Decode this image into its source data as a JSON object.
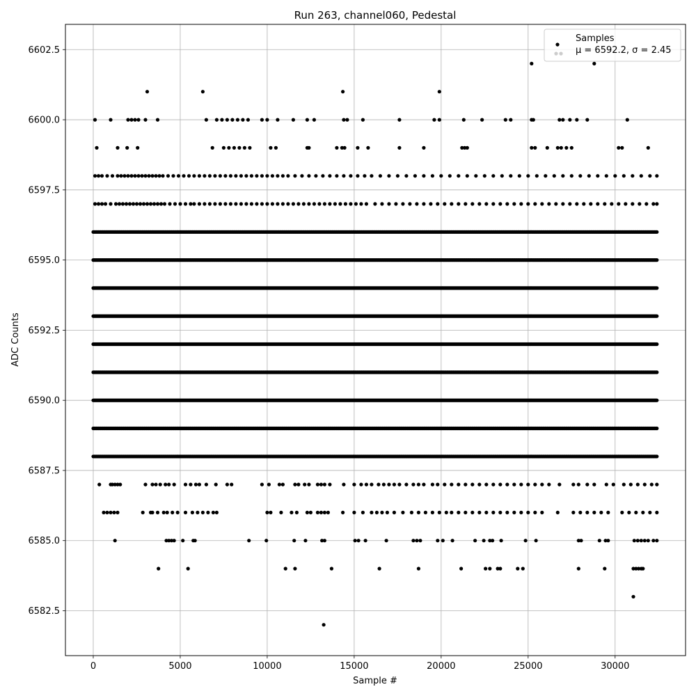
{
  "chart_data": {
    "type": "scatter",
    "title": "Run 263, channel060, Pedestal",
    "xlabel": "Sample #",
    "ylabel": "ADC Counts",
    "xlim": [
      -1600,
      34050
    ],
    "ylim": [
      6580.9,
      6603.4
    ],
    "xticks": [
      0,
      5000,
      10000,
      15000,
      20000,
      25000,
      30000
    ],
    "xtick_labels": [
      "0",
      "5000",
      "10000",
      "15000",
      "20000",
      "25000",
      "30000"
    ],
    "yticks": [
      6582.5,
      6585.0,
      6587.5,
      6590.0,
      6592.5,
      6595.0,
      6597.5,
      6600.0,
      6602.5
    ],
    "ytick_labels": [
      "6582.5",
      "6585.0",
      "6587.5",
      "6590.0",
      "6592.5",
      "6595.0",
      "6597.5",
      "6600.0",
      "6602.5"
    ],
    "grid": true,
    "legend_position": "top-right",
    "marker_color": "#000000",
    "series": [
      {
        "name": "Samples",
        "label_line2": "μ = 6592.2, σ = 2.45",
        "mean": 6592.2,
        "sigma": 2.45,
        "dense_rows": [
          {
            "y": 6588,
            "x_range": [
              0,
              32400
            ],
            "density": "high"
          },
          {
            "y": 6589,
            "x_range": [
              0,
              32400
            ],
            "density": "high"
          },
          {
            "y": 6590,
            "x_range": [
              0,
              32400
            ],
            "density": "full"
          },
          {
            "y": 6591,
            "x_range": [
              0,
              32400
            ],
            "density": "high"
          },
          {
            "y": 6592,
            "x_range": [
              0,
              32400
            ],
            "density": "full"
          },
          {
            "y": 6593,
            "x_range": [
              0,
              32400
            ],
            "density": "full"
          },
          {
            "y": 6594,
            "x_range": [
              0,
              32400
            ],
            "density": "full"
          },
          {
            "y": 6595,
            "x_range": [
              0,
              32400
            ],
            "density": "high"
          },
          {
            "y": 6596,
            "x_range": [
              0,
              32400
            ],
            "density": "high"
          }
        ],
        "sparse_points": [
          {
            "y": 6597,
            "x": [
              100,
              300,
              500,
              700,
              1000,
              1300,
              1500,
              1700,
              1900,
              2100,
              2300,
              2500,
              2700,
              2900,
              3100,
              3300,
              3500,
              3700,
              3900,
              4100,
              4400,
              4700,
              5000,
              5300,
              5600,
              5800,
              6100,
              6400,
              6700,
              7000,
              7300,
              7600,
              7900,
              8200,
              8500,
              8800,
              9100,
              9400,
              9700,
              10000,
              10300,
              10600,
              10900,
              11200,
              11500,
              11800,
              12100,
              12400,
              12700,
              13000,
              13300,
              13600,
              13900,
              14200,
              14500,
              14800,
              15100,
              15400,
              15700,
              16200,
              16600,
              17000,
              17400,
              17800,
              18200,
              18600,
              19000,
              19400,
              19800,
              20200,
              20600,
              21000,
              21400,
              21800,
              22200,
              22600,
              23000,
              23400,
              23800,
              24200,
              24600,
              25000,
              25400,
              25800,
              26200,
              26600,
              27000,
              27400,
              27800,
              28200,
              28600,
              29000,
              29400,
              29800,
              30200,
              30600,
              31000,
              31400,
              31800,
              32200,
              32400
            ]
          },
          {
            "y": 6598,
            "x": [
              100,
              300,
              500,
              800,
              1100,
              1400,
              1600,
              1800,
              2000,
              2200,
              2400,
              2600,
              2800,
              3000,
              3200,
              3400,
              3600,
              3800,
              4000,
              4300,
              4600,
              4900,
              5200,
              5500,
              5800,
              6100,
              6400,
              6700,
              7000,
              7300,
              7600,
              7900,
              8200,
              8500,
              8800,
              9100,
              9400,
              9700,
              10000,
              10300,
              10600,
              10900,
              11200,
              11600,
              12000,
              12400,
              12800,
              13200,
              13600,
              14000,
              14400,
              14800,
              15200,
              15600,
              16000,
              16500,
              17000,
              17500,
              18000,
              18500,
              19000,
              19500,
              20000,
              20500,
              21000,
              21500,
              22000,
              22500,
              23000,
              23500,
              24000,
              24500,
              25000,
              25500,
              26000,
              26500,
              27000,
              27500,
              28000,
              28500,
              29000,
              29500,
              30000,
              30500,
              31000,
              31500,
              32000,
              32400
            ]
          },
          {
            "y": 6599,
            "x": [
              200,
              1400,
              1950,
              2550,
              6850,
              7500,
              7800,
              8100,
              8400,
              8700,
              9000,
              10200,
              10500,
              12300,
              12400,
              14000,
              14300,
              14450,
              15200,
              15800,
              17600,
              19000,
              21200,
              21350,
              21500,
              25200,
              25400,
              26100,
              26700,
              26900,
              27200,
              27500,
              30200,
              30400,
              31900
            ]
          },
          {
            "y": 6600,
            "x": [
              100,
              1000,
              2000,
              2200,
              2400,
              2600,
              3000,
              3700,
              6500,
              7100,
              7400,
              7700,
              8000,
              8300,
              8600,
              8900,
              9700,
              10000,
              10600,
              11500,
              12300,
              12700,
              14400,
              14600,
              15500,
              17600,
              19600,
              19900,
              21300,
              22350,
              23700,
              24000,
              25200,
              25300,
              26800,
              27000,
              27400,
              27800,
              28400,
              30700
            ]
          },
          {
            "y": 6601,
            "x": [
              3100,
              6300,
              14350,
              19900
            ]
          },
          {
            "y": 6602,
            "x": [
              25200,
              28800
            ]
          },
          {
            "y": 6587,
            "x": [
              350,
              1000,
              1100,
              1250,
              1400,
              1550,
              3000,
              3400,
              3600,
              3850,
              4150,
              4350,
              4650,
              5300,
              5600,
              5900,
              6100,
              6500,
              7050,
              7700,
              7950,
              9700,
              10100,
              10700,
              10900,
              11600,
              11800,
              12150,
              12400,
              12900,
              13100,
              13300,
              13600,
              14400,
              15000,
              15400,
              15700,
              16000,
              16400,
              16700,
              17000,
              17300,
              17600,
              18000,
              18400,
              18700,
              19000,
              19500,
              19800,
              20200,
              20600,
              21000,
              21400,
              21800,
              22200,
              22600,
              23000,
              23400,
              23800,
              24200,
              24600,
              25000,
              25400,
              25800,
              26200,
              26800,
              27600,
              27900,
              28400,
              28800,
              29500,
              29900,
              30500,
              30900,
              31300,
              31700,
              32100,
              32400
            ]
          },
          {
            "y": 6586,
            "x": [
              600,
              800,
              1000,
              1200,
              1400,
              2850,
              3300,
              3400,
              3700,
              4050,
              4250,
              4550,
              4850,
              5300,
              5700,
              6000,
              6300,
              6600,
              6900,
              7100,
              10000,
              10200,
              10800,
              11400,
              11700,
              12300,
              12500,
              12900,
              13100,
              13300,
              13500,
              14350,
              15000,
              15500,
              16000,
              16300,
              16600,
              16900,
              17300,
              17800,
              18300,
              18700,
              19100,
              19500,
              19900,
              20300,
              20600,
              21000,
              21400,
              21800,
              22200,
              22600,
              23000,
              23400,
              23800,
              24200,
              24600,
              25000,
              25400,
              25800,
              26700,
              27600,
              28000,
              28400,
              28800,
              29200,
              29600,
              30400,
              30800,
              31200,
              31600,
              32000,
              32400
            ]
          },
          {
            "y": 6585,
            "x": [
              1250,
              4200,
              4350,
              4500,
              4650,
              5150,
              5750,
              5850,
              8950,
              9950,
              11550,
              12200,
              13150,
              13300,
              15050,
              15250,
              15650,
              16850,
              18400,
              18600,
              18800,
              19800,
              20100,
              20650,
              21950,
              22450,
              22800,
              22950,
              23450,
              24850,
              25450,
              27900,
              28050,
              29100,
              29450,
              29600,
              31100,
              31300,
              31500,
              31700,
              31900,
              32200,
              32400
            ]
          },
          {
            "y": 6584,
            "x": [
              3750,
              5450,
              11050,
              11600,
              13700,
              16450,
              18700,
              21150,
              22550,
              22800,
              23250,
              23400,
              24400,
              24700,
              27900,
              29400,
              31050,
              31200,
              31350,
              31500,
              31600
            ]
          },
          {
            "y": 6583,
            "x": [
              31050
            ]
          },
          {
            "y": 6582,
            "x": [
              13250
            ]
          }
        ]
      }
    ]
  }
}
